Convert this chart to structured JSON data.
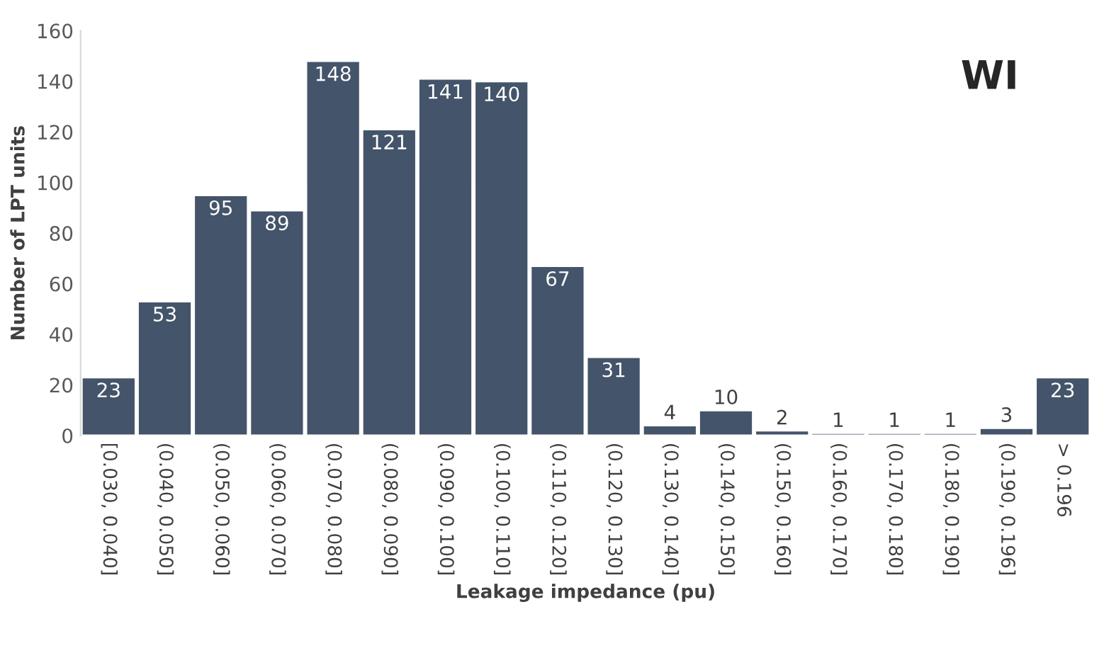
{
  "chart_data": {
    "type": "bar",
    "title": "WI",
    "xlabel": "Leakage impedance (pu)",
    "ylabel": "Number of LPT units",
    "categories": [
      "[0.030, 0.040]",
      "(0.040, 0.050]",
      "(0.050, 0.060]",
      "(0.060, 0.070]",
      "(0.070, 0.080]",
      "(0.080, 0.090]",
      "(0.090, 0.100]",
      "(0.100, 0.110]",
      "(0.110, 0.120]",
      "(0.120, 0.130]",
      "(0.130, 0.140]",
      "(0.140, 0.150]",
      "(0.150, 0.160]",
      "(0.160, 0.170]",
      "(0.170, 0.180]",
      "(0.180, 0.190]",
      "(0.190, 0.196]",
      "> 0.196"
    ],
    "values": [
      23,
      53,
      95,
      89,
      148,
      121,
      141,
      140,
      67,
      31,
      4,
      10,
      2,
      1,
      1,
      1,
      3,
      23
    ],
    "color": "#44546a",
    "ylim": [
      0,
      160
    ],
    "yticks": [
      0,
      20,
      40,
      60,
      80,
      100,
      120,
      140,
      160
    ],
    "grid": false,
    "legend": false,
    "data_labels": true
  }
}
